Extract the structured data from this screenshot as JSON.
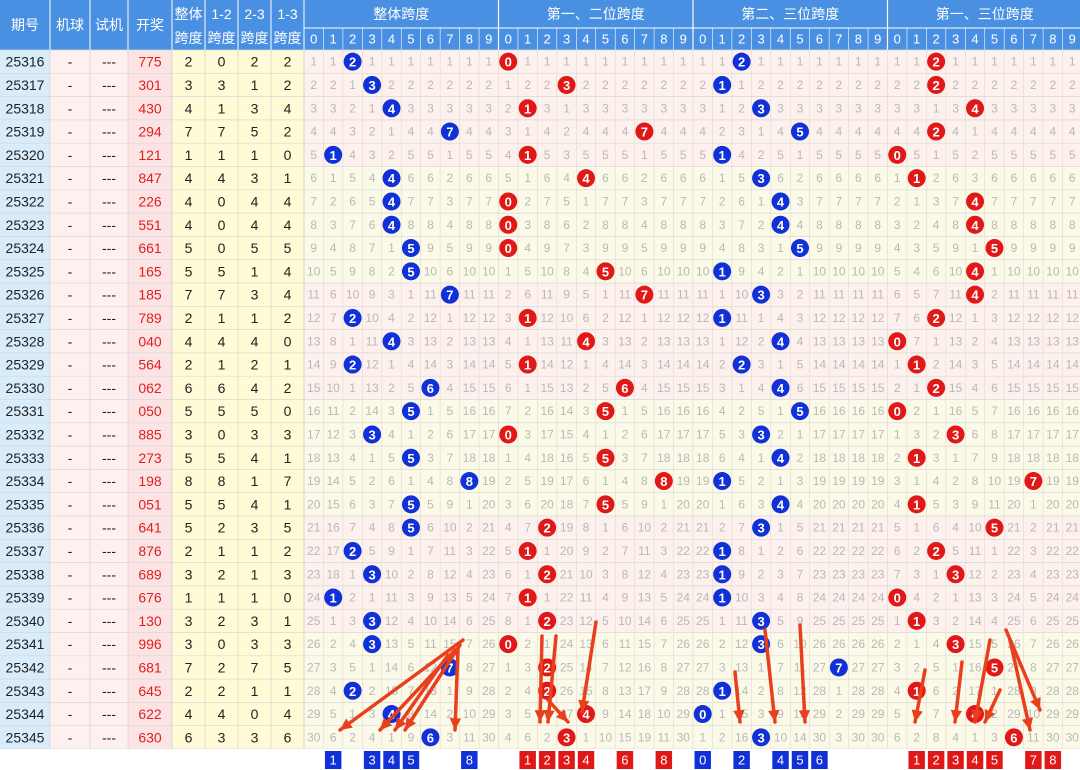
{
  "header": {
    "col_issue": "期号",
    "col_machine": "机球",
    "col_test": "试机",
    "col_draw": "开奖",
    "col_overall_top": "整体",
    "col_overall_bottom": "跨度",
    "col_12_top": "1-2",
    "col_23_top": "2-3",
    "col_13_top": "1-3",
    "col_span_bottom": "跨度",
    "group_titles": [
      "整体跨度",
      "第一、二位跨度",
      "第二、三位跨度",
      "第一、三位跨度"
    ],
    "digits": [
      "0",
      "1",
      "2",
      "3",
      "4",
      "5",
      "6",
      "7",
      "8",
      "9"
    ]
  },
  "chart_data": {
    "type": "table",
    "rows": [
      {
        "issue": "25316",
        "machine": "-",
        "test": "---",
        "draw": "775",
        "span": 2,
        "s12": 0,
        "s23": 2,
        "s13": 2
      },
      {
        "issue": "25317",
        "machine": "-",
        "test": "---",
        "draw": "301",
        "span": 3,
        "s12": 3,
        "s23": 1,
        "s13": 2
      },
      {
        "issue": "25318",
        "machine": "-",
        "test": "---",
        "draw": "430",
        "span": 4,
        "s12": 1,
        "s23": 3,
        "s13": 4
      },
      {
        "issue": "25319",
        "machine": "-",
        "test": "---",
        "draw": "294",
        "span": 7,
        "s12": 7,
        "s23": 5,
        "s13": 2
      },
      {
        "issue": "25320",
        "machine": "-",
        "test": "---",
        "draw": "121",
        "span": 1,
        "s12": 1,
        "s23": 1,
        "s13": 0
      },
      {
        "issue": "25321",
        "machine": "-",
        "test": "---",
        "draw": "847",
        "span": 4,
        "s12": 4,
        "s23": 3,
        "s13": 1
      },
      {
        "issue": "25322",
        "machine": "-",
        "test": "---",
        "draw": "226",
        "span": 4,
        "s12": 0,
        "s23": 4,
        "s13": 4
      },
      {
        "issue": "25323",
        "machine": "-",
        "test": "---",
        "draw": "551",
        "span": 4,
        "s12": 0,
        "s23": 4,
        "s13": 4
      },
      {
        "issue": "25324",
        "machine": "-",
        "test": "---",
        "draw": "661",
        "span": 5,
        "s12": 0,
        "s23": 5,
        "s13": 5
      },
      {
        "issue": "25325",
        "machine": "-",
        "test": "---",
        "draw": "165",
        "span": 5,
        "s12": 5,
        "s23": 1,
        "s13": 4
      },
      {
        "issue": "25326",
        "machine": "-",
        "test": "---",
        "draw": "185",
        "span": 7,
        "s12": 7,
        "s23": 3,
        "s13": 4
      },
      {
        "issue": "25327",
        "machine": "-",
        "test": "---",
        "draw": "789",
        "span": 2,
        "s12": 1,
        "s23": 1,
        "s13": 2
      },
      {
        "issue": "25328",
        "machine": "-",
        "test": "---",
        "draw": "040",
        "span": 4,
        "s12": 4,
        "s23": 4,
        "s13": 0
      },
      {
        "issue": "25329",
        "machine": "-",
        "test": "---",
        "draw": "564",
        "span": 2,
        "s12": 1,
        "s23": 2,
        "s13": 1
      },
      {
        "issue": "25330",
        "machine": "-",
        "test": "---",
        "draw": "062",
        "span": 6,
        "s12": 6,
        "s23": 4,
        "s13": 2
      },
      {
        "issue": "25331",
        "machine": "-",
        "test": "---",
        "draw": "050",
        "span": 5,
        "s12": 5,
        "s23": 5,
        "s13": 0
      },
      {
        "issue": "25332",
        "machine": "-",
        "test": "---",
        "draw": "885",
        "span": 3,
        "s12": 0,
        "s23": 3,
        "s13": 3
      },
      {
        "issue": "25333",
        "machine": "-",
        "test": "---",
        "draw": "273",
        "span": 5,
        "s12": 5,
        "s23": 4,
        "s13": 1
      },
      {
        "issue": "25334",
        "machine": "-",
        "test": "---",
        "draw": "198",
        "span": 8,
        "s12": 8,
        "s23": 1,
        "s13": 7
      },
      {
        "issue": "25335",
        "machine": "-",
        "test": "---",
        "draw": "051",
        "span": 5,
        "s12": 5,
        "s23": 4,
        "s13": 1
      },
      {
        "issue": "25336",
        "machine": "-",
        "test": "---",
        "draw": "641",
        "span": 5,
        "s12": 2,
        "s23": 3,
        "s13": 5
      },
      {
        "issue": "25337",
        "machine": "-",
        "test": "---",
        "draw": "876",
        "span": 2,
        "s12": 1,
        "s23": 1,
        "s13": 2
      },
      {
        "issue": "25338",
        "machine": "-",
        "test": "---",
        "draw": "689",
        "span": 3,
        "s12": 2,
        "s23": 1,
        "s13": 3
      },
      {
        "issue": "25339",
        "machine": "-",
        "test": "---",
        "draw": "676",
        "span": 1,
        "s12": 1,
        "s23": 1,
        "s13": 0
      },
      {
        "issue": "25340",
        "machine": "-",
        "test": "---",
        "draw": "130",
        "span": 3,
        "s12": 2,
        "s23": 3,
        "s13": 1
      },
      {
        "issue": "25341",
        "machine": "-",
        "test": "---",
        "draw": "996",
        "span": 3,
        "s12": 0,
        "s23": 3,
        "s13": 3
      },
      {
        "issue": "25342",
        "machine": "-",
        "test": "---",
        "draw": "681",
        "span": 7,
        "s12": 2,
        "s23": 7,
        "s13": 5
      },
      {
        "issue": "25343",
        "machine": "-",
        "test": "---",
        "draw": "645",
        "span": 2,
        "s12": 2,
        "s23": 1,
        "s13": 1
      },
      {
        "issue": "25344",
        "machine": "-",
        "test": "---",
        "draw": "622",
        "span": 4,
        "s12": 4,
        "s23": 0,
        "s13": 4
      },
      {
        "issue": "25345",
        "machine": "-",
        "test": "---",
        "draw": "630",
        "span": 6,
        "s12": 3,
        "s23": 3,
        "s13": 6
      }
    ],
    "predictions": {
      "overall": [
        "1",
        "3",
        "4",
        "5",
        "8"
      ],
      "pos12": [
        "1",
        "2",
        "3",
        "4",
        "6",
        "8"
      ],
      "pos23": [
        "0",
        "2",
        "4",
        "5",
        "6"
      ],
      "pos13": [
        "1",
        "2",
        "3",
        "4",
        "5",
        "7",
        "8"
      ]
    },
    "colors": {
      "blue_ball": "#1030d8",
      "red_ball": "#e01818",
      "arrow": "#e8401c",
      "header_bg": "#4a90e2",
      "left_bg": "#d8ecfb",
      "draw_bg": "#fde4e4",
      "span_bg": "#fffbd6",
      "omission_text": "#b8b8b8"
    }
  }
}
